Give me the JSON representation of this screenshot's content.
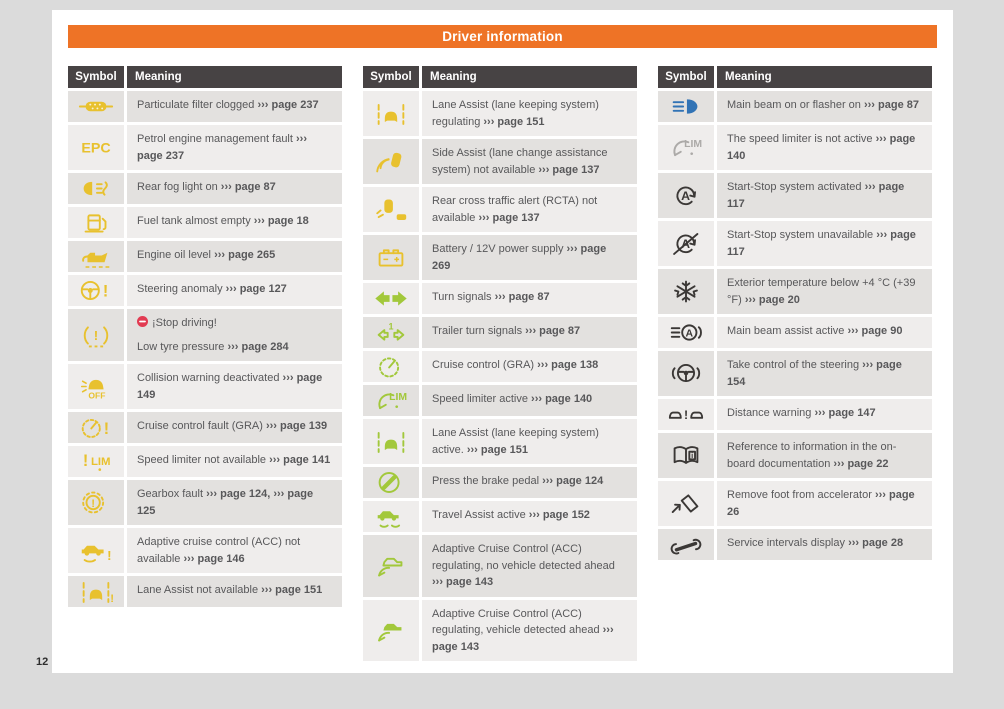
{
  "page": {
    "title": "Driver information",
    "page_number": "12"
  },
  "colors": {
    "accent_orange": "#ee7326",
    "table_header": "#474344",
    "row_dark": "#e3e1df",
    "row_light": "#efedec",
    "text": "#58585a",
    "yellow": "#e8c12e",
    "green": "#a2c83b",
    "blue": "#3173b5",
    "gray": "#acaaa8",
    "dark": "#3b3836",
    "red_badge": "#e23b52"
  },
  "tables": [
    {
      "headers": [
        "Symbol",
        "Meaning"
      ],
      "first_shade": "dark",
      "rows": [
        {
          "icon": "particulate-filter-icon",
          "color": "yellow",
          "segments": [
            {
              "t": "Particulate filter clogged "
            },
            {
              "t": "››› page 237",
              "b": true
            }
          ]
        },
        {
          "icon": "epc-icon",
          "color": "yellow",
          "segments": [
            {
              "t": "Petrol engine management fault "
            },
            {
              "t": "››› page 237",
              "b": true
            }
          ]
        },
        {
          "icon": "rear-fog-light-icon",
          "color": "yellow",
          "segments": [
            {
              "t": "Rear fog light on "
            },
            {
              "t": "››› page 87",
              "b": true
            }
          ]
        },
        {
          "icon": "fuel-tank-icon",
          "color": "yellow",
          "segments": [
            {
              "t": "Fuel tank almost empty "
            },
            {
              "t": "››› page 18",
              "b": true
            }
          ]
        },
        {
          "icon": "engine-oil-icon",
          "color": "yellow",
          "segments": [
            {
              "t": "Engine oil level "
            },
            {
              "t": "››› page 265",
              "b": true
            }
          ]
        },
        {
          "icon": "steering-anomaly-icon",
          "color": "yellow",
          "segments": [
            {
              "t": "Steering anomaly "
            },
            {
              "t": "››› page 127",
              "b": true
            }
          ]
        },
        {
          "icon": "tyre-pressure-icon",
          "color": "yellow",
          "segments": [
            {
              "badge": "stop-driving-icon"
            },
            {
              "t": "¡Stop driving!"
            },
            {
              "br": true
            },
            {
              "t": "Low tyre pressure "
            },
            {
              "t": "››› page 284",
              "b": true
            }
          ]
        },
        {
          "icon": "collision-warning-off-icon",
          "color": "yellow",
          "segments": [
            {
              "t": "Collision warning deactivated "
            },
            {
              "t": "››› page 149",
              "b": true
            }
          ]
        },
        {
          "icon": "cruise-control-fault-icon",
          "color": "yellow",
          "segments": [
            {
              "t": "Cruise control fault (GRA) "
            },
            {
              "t": "››› page 139",
              "b": true
            }
          ]
        },
        {
          "icon": "speed-limiter-unavailable-icon",
          "color": "yellow",
          "segments": [
            {
              "t": "Speed limiter not available "
            },
            {
              "t": "››› page 141",
              "b": true
            }
          ]
        },
        {
          "icon": "gearbox-fault-icon",
          "color": "yellow",
          "segments": [
            {
              "t": "Gearbox fault "
            },
            {
              "t": "››› page 124,",
              "b": true
            },
            {
              "t": " "
            },
            {
              "t": "››› page 125",
              "b": true
            }
          ]
        },
        {
          "icon": "acc-not-available-icon",
          "color": "yellow",
          "segments": [
            {
              "t": "Adaptive cruise control (ACC) not available "
            },
            {
              "t": "››› page 146",
              "b": true
            }
          ]
        },
        {
          "icon": "lane-assist-not-available-icon",
          "color": "yellow",
          "segments": [
            {
              "t": "Lane Assist not available "
            },
            {
              "t": "››› page 151",
              "b": true
            }
          ]
        }
      ]
    },
    {
      "headers": [
        "Symbol",
        "Meaning"
      ],
      "first_shade": "light",
      "rows": [
        {
          "icon": "lane-assist-regulating-icon",
          "color": "yellow",
          "segments": [
            {
              "t": "Lane Assist (lane keeping system) regulating "
            },
            {
              "t": "››› page 151",
              "b": true
            }
          ]
        },
        {
          "icon": "side-assist-icon",
          "color": "yellow",
          "segments": [
            {
              "t": "Side Assist (lane change assistance system) not available "
            },
            {
              "t": "››› page 137",
              "b": true
            }
          ]
        },
        {
          "icon": "rcta-icon",
          "color": "yellow",
          "segments": [
            {
              "t": "Rear cross traffic alert (RCTA) not available "
            },
            {
              "t": "››› page 137",
              "b": true
            }
          ]
        },
        {
          "icon": "battery-icon",
          "color": "yellow",
          "segments": [
            {
              "t": "Battery / 12V power supply "
            },
            {
              "t": "››› page 269",
              "b": true
            }
          ]
        },
        {
          "icon": "turn-signals-icon",
          "color": "green",
          "segments": [
            {
              "t": "Turn signals "
            },
            {
              "t": "››› page 87",
              "b": true
            }
          ]
        },
        {
          "icon": "trailer-turn-signals-icon",
          "color": "green",
          "segments": [
            {
              "t": "Trailer turn signals "
            },
            {
              "t": "››› page 87",
              "b": true
            }
          ]
        },
        {
          "icon": "cruise-control-icon",
          "color": "green",
          "segments": [
            {
              "t": "Cruise control (GRA) "
            },
            {
              "t": "››› page 138",
              "b": true
            }
          ]
        },
        {
          "icon": "speed-limiter-active-icon",
          "color": "green",
          "segments": [
            {
              "t": "Speed limiter active "
            },
            {
              "t": "››› page 140",
              "b": true
            }
          ]
        },
        {
          "icon": "lane-assist-active-icon",
          "color": "green",
          "segments": [
            {
              "t": "Lane Assist (lane keeping system) active. "
            },
            {
              "t": "››› page 151",
              "b": true
            }
          ]
        },
        {
          "icon": "brake-pedal-icon",
          "color": "green",
          "segments": [
            {
              "t": "Press the brake pedal "
            },
            {
              "t": "››› page 124",
              "b": true
            }
          ]
        },
        {
          "icon": "travel-assist-icon",
          "color": "green",
          "segments": [
            {
              "t": "Travel Assist active "
            },
            {
              "t": "››› page 152",
              "b": true
            }
          ]
        },
        {
          "icon": "acc-regulating-no-vehicle-icon",
          "color": "green",
          "segments": [
            {
              "t": "Adaptive Cruise Control (ACC) regulating, no vehicle detected ahead "
            },
            {
              "t": "››› page 143",
              "b": true
            }
          ]
        },
        {
          "icon": "acc-regulating-vehicle-icon",
          "color": "green",
          "segments": [
            {
              "t": "Adaptive Cruise Control (ACC) regulating, vehicle detected ahead "
            },
            {
              "t": "››› page 143",
              "b": true
            }
          ]
        }
      ]
    },
    {
      "headers": [
        "Symbol",
        "Meaning"
      ],
      "first_shade": "dark",
      "rows": [
        {
          "icon": "main-beam-icon",
          "color": "blue",
          "segments": [
            {
              "t": "Main beam on or flasher on "
            },
            {
              "t": "››› page 87",
              "b": true
            }
          ]
        },
        {
          "icon": "speed-limiter-inactive-icon",
          "color": "gray",
          "segments": [
            {
              "t": "The speed limiter is not active "
            },
            {
              "t": "››› page 140",
              "b": true
            }
          ]
        },
        {
          "icon": "start-stop-activated-icon",
          "color": "dark",
          "segments": [
            {
              "t": "Start-Stop system activated "
            },
            {
              "t": "››› page 117",
              "b": true
            }
          ]
        },
        {
          "icon": "start-stop-unavailable-icon",
          "color": "dark",
          "segments": [
            {
              "t": "Start-Stop system unavailable "
            },
            {
              "t": "››› page 117",
              "b": true
            }
          ]
        },
        {
          "icon": "exterior-temperature-icon",
          "color": "dark",
          "segments": [
            {
              "t": "Exterior temperature below +4 °C (+39 °F) "
            },
            {
              "t": "››› page 20",
              "b": true
            }
          ]
        },
        {
          "icon": "main-beam-assist-icon",
          "color": "dark",
          "segments": [
            {
              "t": "Main beam assist active "
            },
            {
              "t": "››› page 90",
              "b": true
            }
          ]
        },
        {
          "icon": "take-control-steering-icon",
          "color": "dark",
          "segments": [
            {
              "t": "Take control of the steering "
            },
            {
              "t": "››› page 154",
              "b": true
            }
          ]
        },
        {
          "icon": "distance-warning-icon",
          "color": "dark",
          "segments": [
            {
              "t": "Distance warning "
            },
            {
              "t": "››› page 147",
              "b": true
            }
          ]
        },
        {
          "icon": "onboard-documentation-icon",
          "color": "dark",
          "segments": [
            {
              "t": "Reference to information in the on-board documentation "
            },
            {
              "t": "››› page 22",
              "b": true
            }
          ]
        },
        {
          "icon": "remove-foot-accelerator-icon",
          "color": "dark",
          "segments": [
            {
              "t": "Remove foot from accelerator "
            },
            {
              "t": "››› page 26",
              "b": true
            }
          ]
        },
        {
          "icon": "service-intervals-icon",
          "color": "dark",
          "segments": [
            {
              "t": "Service intervals display "
            },
            {
              "t": "››› page 28",
              "b": true
            }
          ]
        }
      ]
    }
  ]
}
